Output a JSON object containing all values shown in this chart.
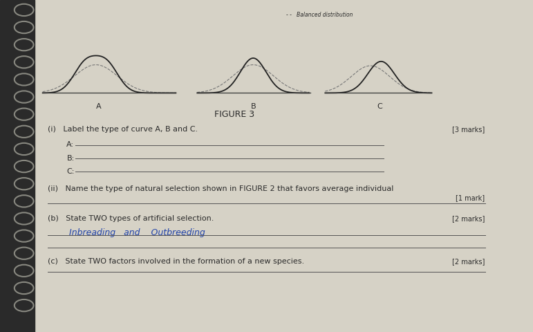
{
  "bg_color": "#c8c4b8",
  "page_bg": "#d6d2c6",
  "title": "FIGURE 3",
  "figure_label": "- -   Balanced distribution",
  "section_i_text": "(i)   Label the type of curve A, B and C.",
  "marks_i": "[3 marks]",
  "label_a": "A:",
  "label_b": "B:",
  "label_c": "C:",
  "section_ii_text": "(ii)   Name the type of natural selection shown in FIGURE 2 that favors average individual",
  "marks_ii": "[1 mark]",
  "section_b_text": "(b)   State TWO types of artificial selection.",
  "marks_b": "[2 marks]",
  "answer_b": "Inbreading   and    Outbreeding",
  "section_c_text": "(c)   State TWO factors involved in the formation of a new species.",
  "marks_c": "[2 marks]",
  "text_color": "#2a2a2a",
  "answer_color": "#2244aa",
  "line_color": "#555555",
  "body_fontsize": 8,
  "small_fontsize": 7
}
